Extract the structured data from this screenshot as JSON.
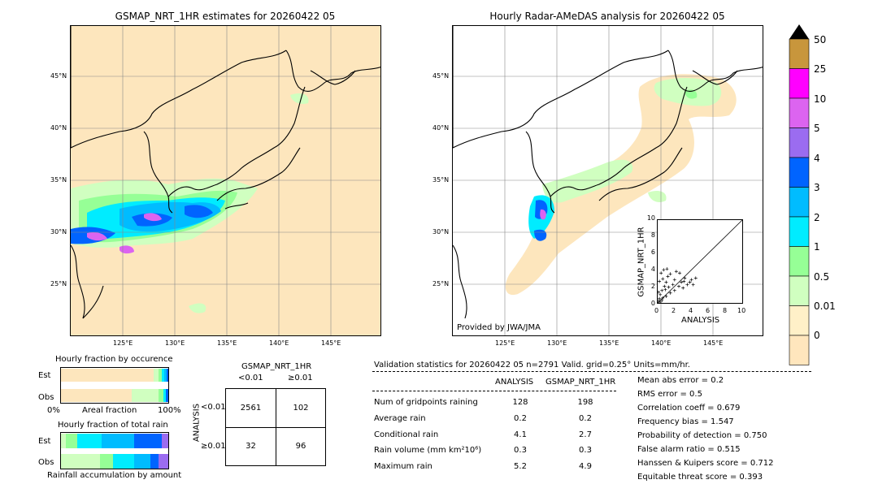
{
  "map_left": {
    "title": "GSMAP_NRT_1HR estimates for 20260422 05",
    "lat_labels": [
      "45°N",
      "40°N",
      "35°N",
      "30°N",
      "25°N"
    ],
    "lon_labels": [
      "125°E",
      "130°E",
      "135°E",
      "140°E",
      "145°E"
    ]
  },
  "map_right": {
    "title": "Hourly Radar-AMeDAS analysis for 20260422 05",
    "lat_labels": [
      "45°N",
      "40°N",
      "35°N",
      "30°N",
      "25°N"
    ],
    "lon_labels": [
      "125°E",
      "130°E",
      "135°E",
      "140°E",
      "145°E"
    ],
    "credit": "Provided by JWA/JMA"
  },
  "colorbar": {
    "labels": [
      "50",
      "25",
      "10",
      "5",
      "4",
      "3",
      "2",
      "1",
      "0.5",
      "0.01",
      "0"
    ],
    "colors": [
      "#c8963c",
      "#ff00ff",
      "#dc64f0",
      "#9b6cf0",
      "#0064ff",
      "#00bcff",
      "#00ecff",
      "#96ff96",
      "#d0ffc0",
      "#fff0c8",
      "#ffe6bd"
    ]
  },
  "scatter": {
    "ylabel": "GSMAP_NRT_1HR",
    "xlabel": "ANALYSIS",
    "ticks": [
      "0",
      "2",
      "4",
      "6",
      "8",
      "10"
    ]
  },
  "chart_data": {
    "type": "scatter",
    "xlabel": "ANALYSIS",
    "ylabel": "GSMAP_NRT_1HR",
    "xlim": [
      0,
      10
    ],
    "ylim": [
      0,
      10
    ],
    "points": [
      [
        0.1,
        0.2
      ],
      [
        0.2,
        0.5
      ],
      [
        0.3,
        1.0
      ],
      [
        0.5,
        0.3
      ],
      [
        0.5,
        1.5
      ],
      [
        0.8,
        2.0
      ],
      [
        1.0,
        0.8
      ],
      [
        1.0,
        2.5
      ],
      [
        1.2,
        3.2
      ],
      [
        1.5,
        1.2
      ],
      [
        1.5,
        3.5
      ],
      [
        1.8,
        2.2
      ],
      [
        2.0,
        1.5
      ],
      [
        2.0,
        2.8
      ],
      [
        2.2,
        3.8
      ],
      [
        2.5,
        2.0
      ],
      [
        2.8,
        2.5
      ],
      [
        3.0,
        1.8
      ],
      [
        3.2,
        3.0
      ],
      [
        3.5,
        2.2
      ],
      [
        3.8,
        2.5
      ],
      [
        4.0,
        2.8
      ],
      [
        4.2,
        2.2
      ],
      [
        4.5,
        3.0
      ],
      [
        0.3,
        0.1
      ],
      [
        0.6,
        0.6
      ],
      [
        0.9,
        1.6
      ],
      [
        1.3,
        1.9
      ],
      [
        0.2,
        2.6
      ],
      [
        0.4,
        3.6
      ],
      [
        0.7,
        4.0
      ],
      [
        1.1,
        4.1
      ],
      [
        2.6,
        3.6
      ],
      [
        3.1,
        2.6
      ],
      [
        0.1,
        1.3
      ],
      [
        0.6,
        2.9
      ]
    ]
  },
  "occurrence": {
    "title": "Hourly fraction by occurence",
    "est_label": "Est",
    "obs_label": "Obs",
    "axis_left": "0%",
    "axis_mid": "Areal fraction",
    "axis_right": "100%"
  },
  "accumulation": {
    "title": "Hourly fraction of total rain",
    "est_label": "Est",
    "obs_label": "Obs",
    "footer": "Rainfall accumulation by amount"
  },
  "contingency": {
    "title": "GSMAP_NRT_1HR",
    "col_lt": "<0.01",
    "col_ge": "≥0.01",
    "row_axis": "ANALYSIS",
    "row_lt": "<0.01",
    "row_ge": "≥0.01",
    "cells": [
      "2561",
      "102",
      "32",
      "96"
    ]
  },
  "validation": {
    "header": "Validation statistics for 20260422 05  n=2791 Valid. grid=0.25° Units=mm/hr.",
    "col_analysis": "ANALYSIS",
    "col_gsmap": "GSMAP_NRT_1HR",
    "rows": [
      {
        "label": "Num of gridpoints raining",
        "a": "128",
        "g": "198"
      },
      {
        "label": "Average rain",
        "a": "0.2",
        "g": "0.2"
      },
      {
        "label": "Conditional rain",
        "a": "4.1",
        "g": "2.7"
      },
      {
        "label": "Rain volume (mm km²10⁶)",
        "a": "0.3",
        "g": "0.3"
      },
      {
        "label": "Maximum rain",
        "a": "5.2",
        "g": "4.9"
      }
    ],
    "scores": [
      "Mean abs error =    0.2",
      "RMS error =    0.5",
      "Correlation coeff =  0.679",
      "Frequency bias =  1.547",
      "Probability of detection =  0.750",
      "False alarm ratio =  0.515",
      "Hanssen & Kuipers score =  0.712",
      "Equitable threat score =  0.393"
    ]
  }
}
